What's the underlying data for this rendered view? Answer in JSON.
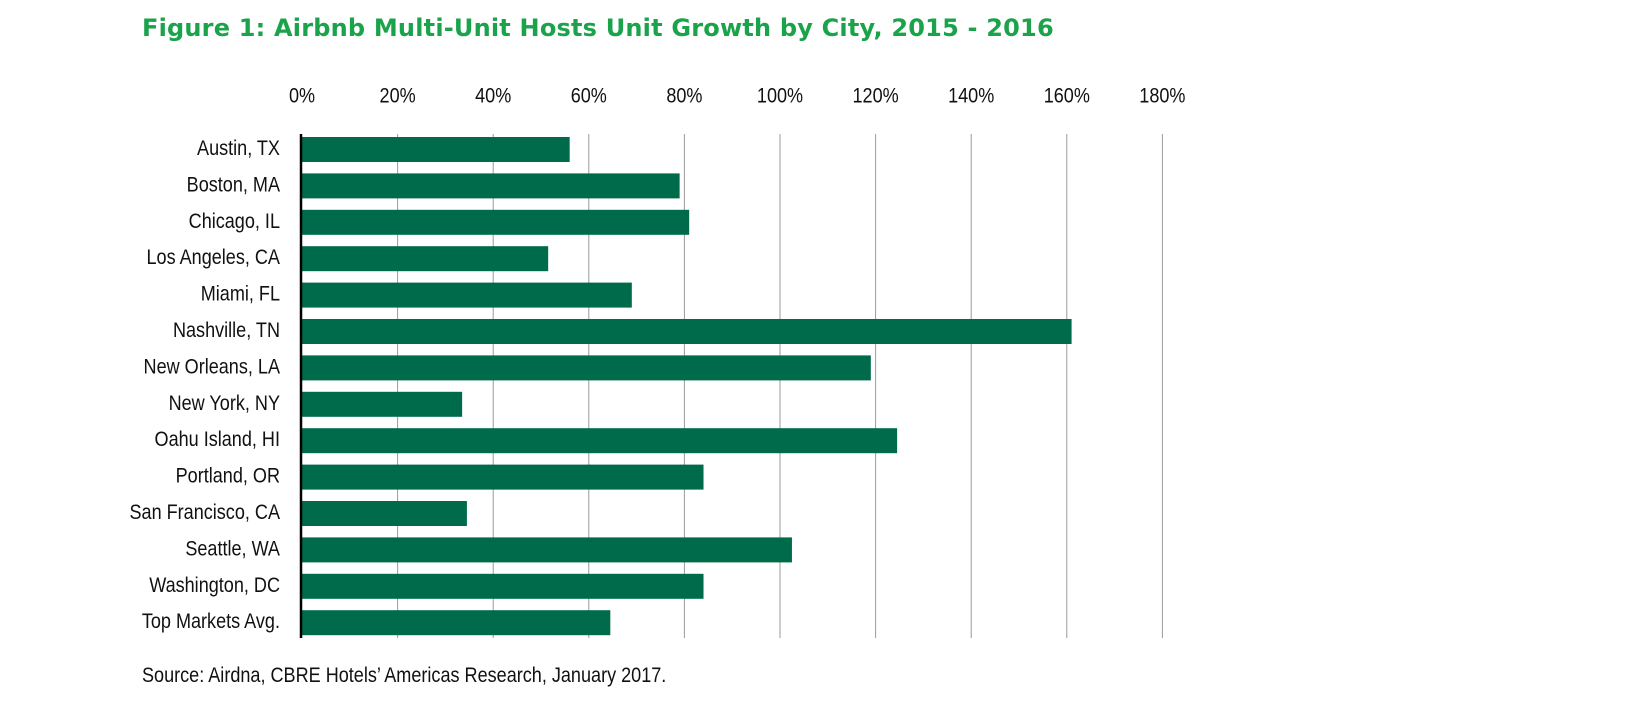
{
  "title": "Figure 1: Airbnb Multi-Unit Hosts Unit Growth by City, 2015 - 2016",
  "source": "Source: Airdna, CBRE Hotels’ Americas Research, January 2017.",
  "colors": {
    "title": "#1aa34a",
    "bar": "#006b4a",
    "grid": "#9a9a9a",
    "axis": "#000000",
    "text": "#111111"
  },
  "chart_data": {
    "type": "bar",
    "orientation": "horizontal",
    "categories": [
      "Austin, TX",
      "Boston, MA",
      "Chicago, IL",
      "Los Angeles, CA",
      "Miami, FL",
      "Nashville, TN",
      "New Orleans, LA",
      "New York, NY",
      "Oahu Island, HI",
      "Portland, OR",
      "San Francisco, CA",
      "Seattle, WA",
      "Washington, DC",
      "Top Markets Avg."
    ],
    "values": [
      56,
      79,
      81,
      51.5,
      69,
      161,
      119,
      33.5,
      124.5,
      84,
      34.5,
      102.5,
      84,
      64.5
    ],
    "value_unit": "%",
    "xlim": [
      0,
      180
    ],
    "xticks": [
      "0%",
      "20%",
      "40%",
      "60%",
      "80%",
      "100%",
      "120%",
      "140%",
      "160%",
      "180%"
    ],
    "xtick_values": [
      0,
      20,
      40,
      60,
      80,
      100,
      120,
      140,
      160,
      180
    ],
    "xaxis_position": "top",
    "grid": true,
    "legend": "none",
    "xlabel": "",
    "ylabel": ""
  }
}
